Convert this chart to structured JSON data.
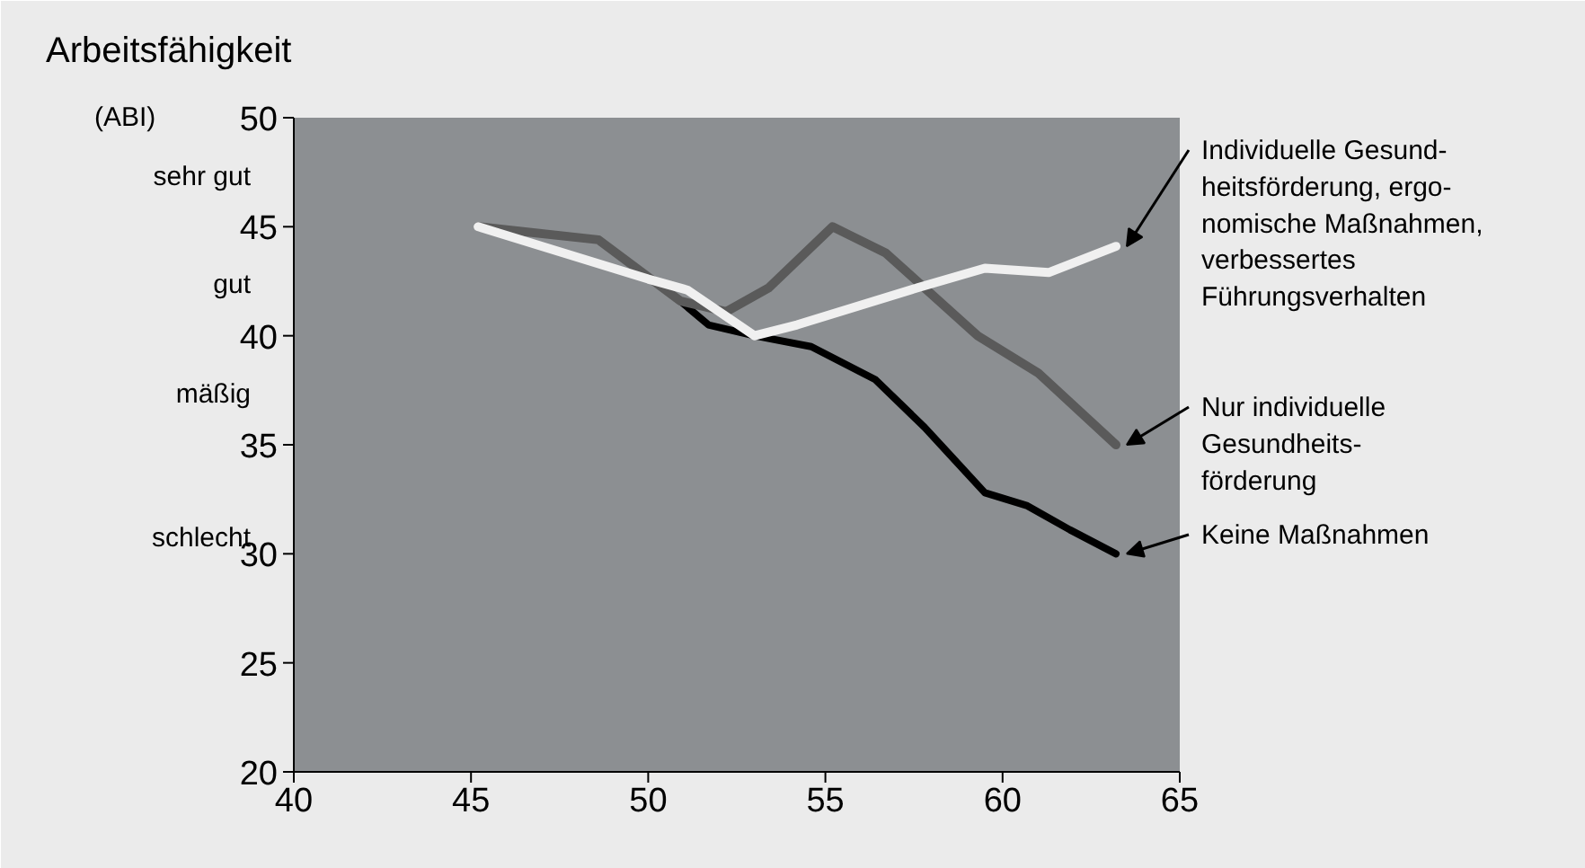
{
  "chart_data": {
    "type": "line",
    "title": "Arbeitsfähigkeit",
    "ylabel": "(ABI)",
    "xlim": [
      40,
      65
    ],
    "xticks": [
      40,
      45,
      50,
      55,
      60,
      65
    ],
    "ylim": [
      20,
      50
    ],
    "yticks": [
      20,
      25,
      30,
      35,
      40,
      45,
      50
    ],
    "grid": false,
    "annotations": [
      "sehr gut",
      "gut",
      "mäßig",
      "schlecht",
      "Individuelle Gesund-\nheitsförderung, ergo-\nnomische Maßnahmen,\nverbessertes\nFührungsverhalten",
      "Nur individuelle\nGesundheits-\nförderung",
      "Keine Maßnahmen"
    ],
    "series": [
      {
        "color": "#000000",
        "x": [
          50.9,
          51.7,
          53.0,
          54.6,
          56.4,
          57.8,
          59.5,
          60.7,
          61.9,
          63.2
        ],
        "values": [
          41.6,
          40.5,
          40.0,
          39.5,
          38.0,
          35.8,
          32.8,
          32.2,
          31.1,
          30.0
        ]
      },
      {
        "color": "#5a5a5a",
        "x": [
          45.2,
          48.6,
          50.9,
          52.2,
          53.4,
          55.2,
          56.7,
          59.3,
          61.0,
          63.2
        ],
        "values": [
          45,
          44.4,
          41.6,
          41.1,
          42.2,
          45.0,
          43.8,
          40.0,
          38.3,
          35.0
        ]
      },
      {
        "color": "#f0f0f0",
        "x": [
          45.2,
          50.0,
          51.1,
          53.0,
          54.2,
          57.6,
          59.5,
          61.3,
          63.2
        ],
        "values": [
          45,
          42.6,
          42.1,
          40.0,
          40.5,
          42.2,
          43.1,
          42.9,
          44.1
        ]
      }
    ]
  }
}
